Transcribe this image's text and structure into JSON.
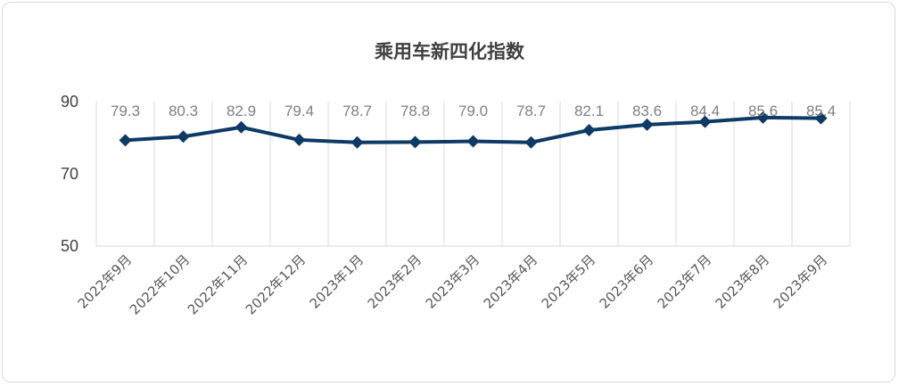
{
  "chart_data": {
    "type": "line",
    "title": "乘用车新四化指数",
    "xlabel": "",
    "ylabel": "",
    "ylim": [
      50,
      90
    ],
    "yticks": [
      50,
      70,
      90
    ],
    "grid": "vertical",
    "categories": [
      "2022年9月",
      "2022年10月",
      "2022年11月",
      "2022年12月",
      "2023年1月",
      "2023年2月",
      "2023年3月",
      "2023年4月",
      "2023年5月",
      "2023年6月",
      "2023年7月",
      "2023年8月",
      "2023年9月"
    ],
    "values": [
      79.3,
      80.3,
      82.9,
      79.4,
      78.7,
      78.8,
      79.0,
      78.7,
      82.1,
      83.6,
      84.4,
      85.6,
      85.4
    ],
    "data_labels": [
      "79.3",
      "80.3",
      "82.9",
      "79.4",
      "78.7",
      "78.8",
      "79.0",
      "78.7",
      "82.1",
      "83.6",
      "84.4",
      "85.6",
      "85.4"
    ],
    "colors": {
      "line": "#0e3a66",
      "grid": "#d9d9d9",
      "label": "#7f7f7f"
    }
  }
}
